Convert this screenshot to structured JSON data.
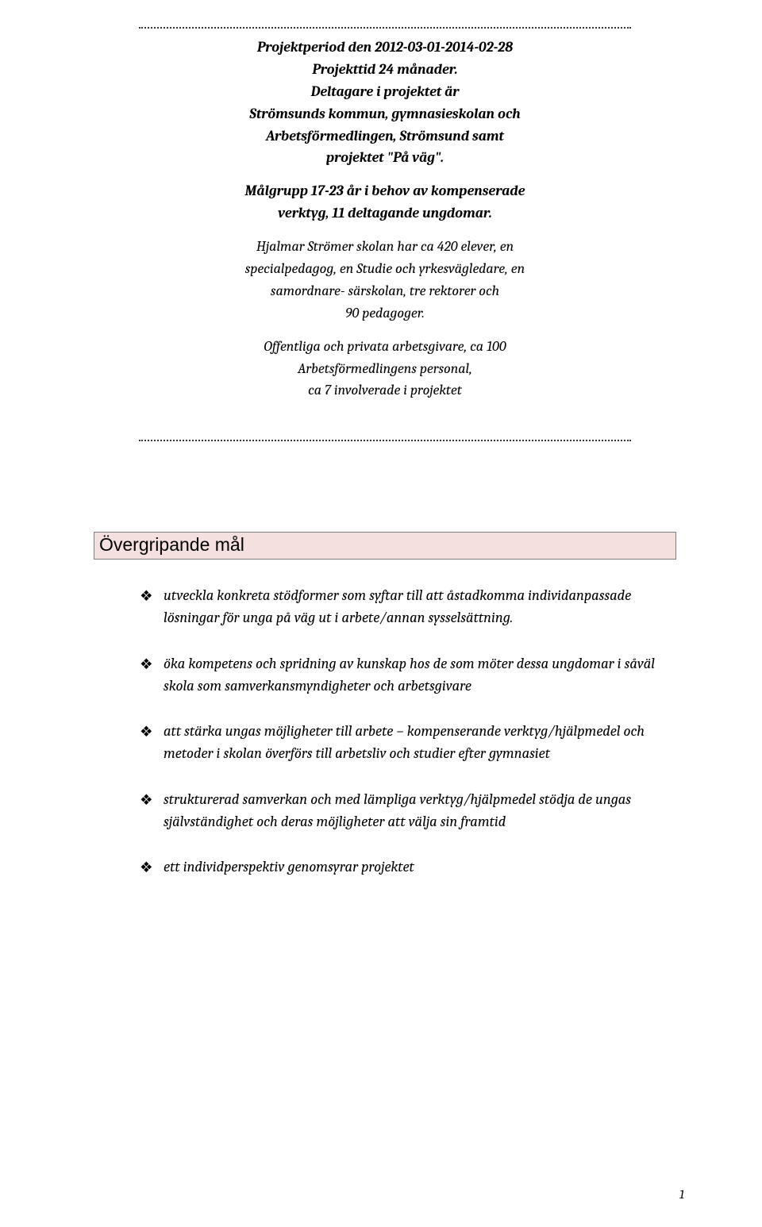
{
  "intro": {
    "line1": "Projektperiod den 2012-03-01-2014-02-28",
    "line2": "Projekttid 24 månader.",
    "line3": "Deltagare i projektet är",
    "line4": "Strömsunds kommun, gymnasieskolan och",
    "line5": "Arbetsförmedlingen, Strömsund samt",
    "line6": "projektet \"På väg\".",
    "line7": "Målgrupp 17-23 år i behov av kompenserade",
    "line8": "verktyg, 11 deltagande ungdomar."
  },
  "sub": {
    "line1": "Hjalmar Strömer skolan har ca 420 elever, en",
    "line2": "specialpedagog, en Studie och yrkesvägledare, en",
    "line3": "samordnare- särskolan, tre rektorer och",
    "line4": "90 pedagoger.",
    "line5": "Offentliga och privata arbetsgivare, ca 100",
    "line6": "Arbetsförmedlingens personal,",
    "line7": "ca 7 involverade i projektet"
  },
  "heading": "Övergripande mål",
  "bullets": [
    "utveckla konkreta stödformer som syftar till att åstadkomma individanpassade lösningar för unga på väg ut i arbete/annan sysselsättning.",
    "öka kompetens och spridning av kunskap hos de som möter dessa ungdomar i såväl skola som samverkansmyndigheter och arbetsgivare",
    "att stärka ungas möjligheter till arbete – kompenserande verktyg/hjälpmedel och metoder i skolan överförs till arbetsliv och studier efter gymnasiet",
    "strukturerad samverkan och med lämpliga verktyg/hjälpmedel stödja de ungas självständighet och deras möjligheter att välja sin framtid",
    "ett individperspektiv genomsyrar projektet"
  ],
  "bullet_marker": "❖",
  "page_number": "1",
  "colors": {
    "heading_bg": "#f3e0df",
    "heading_border": "#7f7f7f",
    "text": "#000000",
    "dotted": "#333333"
  }
}
